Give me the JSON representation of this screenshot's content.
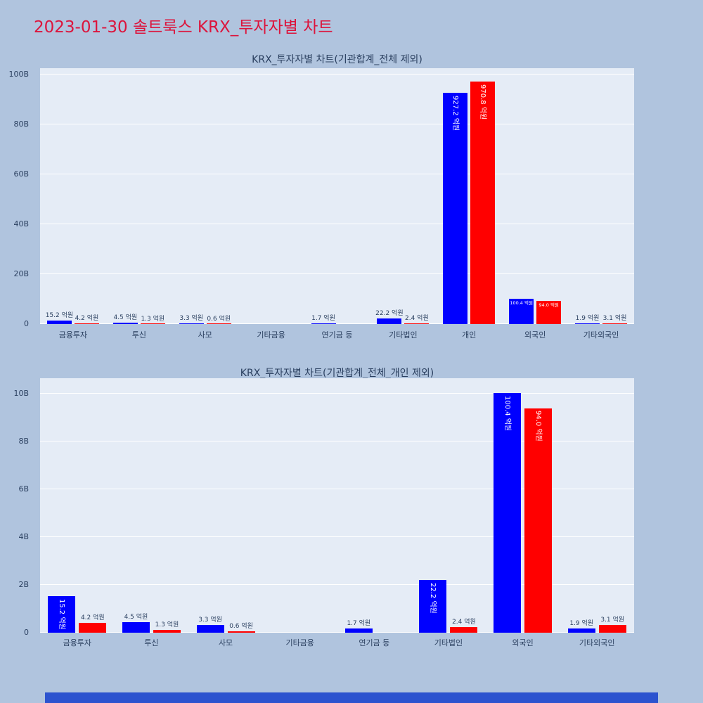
{
  "page": {
    "title": "2023-01-30 솔트룩스 KRX_투자자별 차트",
    "title_color": "#dc143c",
    "background_color": "#b0c4de",
    "plot_background_color": "#e5ecf6",
    "axis_text_color": "#2a3f5f",
    "footer_bar_color": "#2c53cf"
  },
  "chart_data": [
    {
      "type": "bar",
      "title": "KRX_투자자별 차트(기관합계_전체 제외)",
      "categories": [
        "금융투자",
        "투신",
        "사모",
        "기타금융",
        "연기금 등",
        "기타법인",
        "개인",
        "외국인",
        "기타외국인"
      ],
      "yticks": [
        {
          "v": 0,
          "label": "0"
        },
        {
          "v": 20,
          "label": "20B"
        },
        {
          "v": 40,
          "label": "40B"
        },
        {
          "v": 60,
          "label": "60B"
        },
        {
          "v": 80,
          "label": "80B"
        },
        {
          "v": 100,
          "label": "100B"
        }
      ],
      "ylabel": "",
      "xlabel": "",
      "ymax_b": 102.5,
      "grid": true,
      "legend": false,
      "series": [
        {
          "key": "blue",
          "color": "#0000ff",
          "values_eokwon": [
            15.2,
            4.5,
            3.3,
            0,
            1.7,
            22.2,
            927.2,
            100.4,
            1.9
          ],
          "labels": [
            "15.2 억원",
            "4.5 억원",
            "3.3 억원",
            "",
            "1.7 억원",
            "22.2 억원",
            "927.2 억원",
            "100.4 억원",
            "1.9 억원"
          ],
          "label_pos": [
            "out",
            "out",
            "out",
            "none",
            "out",
            "out",
            "in-v",
            "in-h",
            "out"
          ]
        },
        {
          "key": "red",
          "color": "#ff0000",
          "values_eokwon": [
            4.2,
            1.3,
            0.6,
            0,
            0,
            2.4,
            970.8,
            94.0,
            3.1
          ],
          "labels": [
            "4.2 억원",
            "1.3 억원",
            "0.6 억원",
            "",
            "",
            "2.4 억원",
            "970.8 억원",
            "94.0 억원",
            "3.1 억원"
          ],
          "label_pos": [
            "out",
            "out",
            "out",
            "none",
            "none",
            "out",
            "in-v",
            "in-h",
            "out"
          ]
        }
      ]
    },
    {
      "type": "bar",
      "title": "KRX_투자자별 차트(기관합계_전체_개인 제외)",
      "categories": [
        "금융투자",
        "투신",
        "사모",
        "기타금융",
        "연기금 등",
        "기타법인",
        "외국인",
        "기타외국인"
      ],
      "yticks": [
        {
          "v": 0,
          "label": "0"
        },
        {
          "v": 2,
          "label": "2B"
        },
        {
          "v": 4,
          "label": "4B"
        },
        {
          "v": 6,
          "label": "6B"
        },
        {
          "v": 8,
          "label": "8B"
        },
        {
          "v": 10,
          "label": "10B"
        }
      ],
      "ylabel": "",
      "xlabel": "",
      "ymax_b": 10.65,
      "grid": true,
      "legend": false,
      "series": [
        {
          "key": "blue",
          "color": "#0000ff",
          "values_eokwon": [
            15.2,
            4.5,
            3.3,
            0,
            1.7,
            22.2,
            100.4,
            1.9
          ],
          "labels": [
            "15.2 억원",
            "4.5 억원",
            "3.3 억원",
            "",
            "1.7 억원",
            "22.2 억원",
            "100.4 억원",
            "1.9 억원"
          ],
          "label_pos": [
            "in-v",
            "out",
            "out",
            "none",
            "out",
            "in-v",
            "in-v",
            "out"
          ]
        },
        {
          "key": "red",
          "color": "#ff0000",
          "values_eokwon": [
            4.2,
            1.3,
            0.6,
            0,
            0,
            2.4,
            94.0,
            3.1
          ],
          "labels": [
            "4.2 억원",
            "1.3 억원",
            "0.6 억원",
            "",
            "",
            "2.4 억원",
            "94.0 억원",
            "3.1 억원"
          ],
          "label_pos": [
            "out",
            "out",
            "out",
            "none",
            "none",
            "out",
            "in-v",
            "out"
          ]
        }
      ]
    }
  ]
}
